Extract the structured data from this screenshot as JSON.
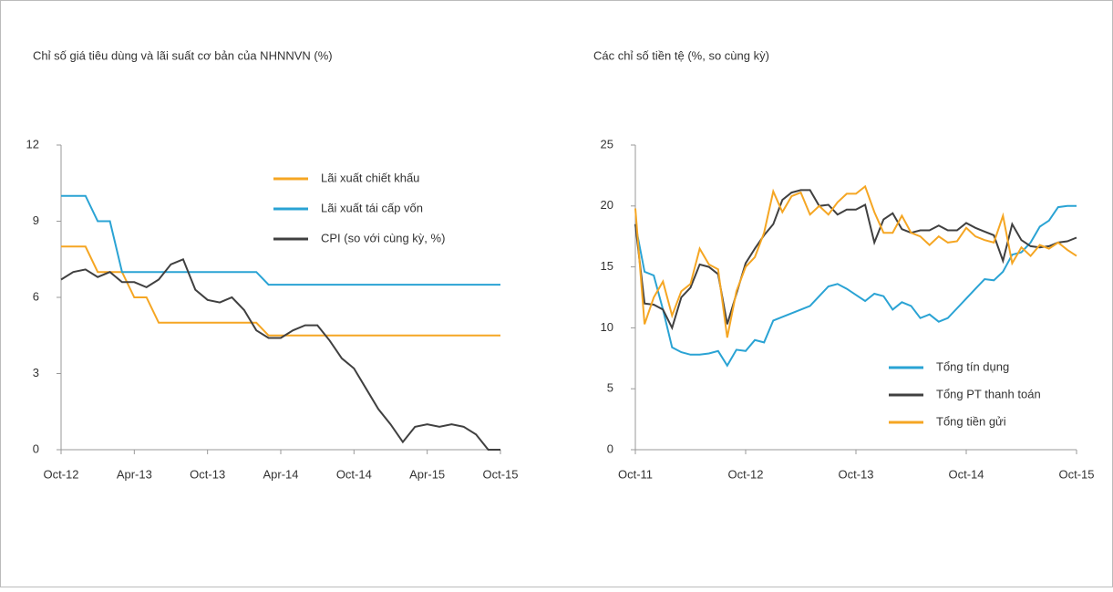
{
  "chart_data": [
    {
      "type": "line",
      "title": "Chỉ số giá tiêu dùng và lãi suất cơ bản của NHNNVN (%)",
      "categories": [
        "Oct-12",
        null,
        null,
        null,
        null,
        null,
        "Apr-13",
        null,
        null,
        null,
        null,
        null,
        "Oct-13",
        null,
        null,
        null,
        null,
        null,
        "Apr-14",
        null,
        null,
        null,
        null,
        null,
        "Oct-14",
        null,
        null,
        null,
        null,
        null,
        "Apr-15",
        null,
        null,
        null,
        null,
        null,
        "Oct-15"
      ],
      "series": [
        {
          "name": "Lãi xuất chiết khấu",
          "color": "#f5a623",
          "values": [
            8,
            8,
            8,
            7,
            7,
            7,
            6,
            6,
            5,
            5,
            5,
            5,
            5,
            5,
            5,
            5,
            5,
            4.5,
            4.5,
            4.5,
            4.5,
            4.5,
            4.5,
            4.5,
            4.5,
            4.5,
            4.5,
            4.5,
            4.5,
            4.5,
            4.5,
            4.5,
            4.5,
            4.5,
            4.5,
            4.5,
            4.5
          ]
        },
        {
          "name": "Lãi xuất tái cấp vốn",
          "color": "#2aa3d4",
          "values": [
            10,
            10,
            10,
            9,
            9,
            7,
            7,
            7,
            7,
            7,
            7,
            7,
            7,
            7,
            7,
            7,
            7,
            6.5,
            6.5,
            6.5,
            6.5,
            6.5,
            6.5,
            6.5,
            6.5,
            6.5,
            6.5,
            6.5,
            6.5,
            6.5,
            6.5,
            6.5,
            6.5,
            6.5,
            6.5,
            6.5,
            6.5
          ]
        },
        {
          "name": "CPI (so với cùng kỳ, %)",
          "color": "#404040",
          "values": [
            6.7,
            7.0,
            7.1,
            6.8,
            7.0,
            6.6,
            6.6,
            6.4,
            6.7,
            7.3,
            7.5,
            6.3,
            5.9,
            5.8,
            6.0,
            5.5,
            4.7,
            4.4,
            4.4,
            4.7,
            4.9,
            4.9,
            4.3,
            3.6,
            3.2,
            2.4,
            1.6,
            1.0,
            0.3,
            0.9,
            1.0,
            0.9,
            1.0,
            0.9,
            0.6,
            0.0,
            0.0
          ]
        }
      ],
      "ylim": [
        0,
        12
      ],
      "yticks": [
        0,
        3,
        6,
        9,
        12
      ],
      "legend": "upper right"
    },
    {
      "type": "line",
      "title": "Các chỉ số tiền tệ (%, so cùng kỳ)",
      "categories": [
        "Oct-11",
        null,
        null,
        null,
        null,
        null,
        null,
        null,
        null,
        null,
        null,
        null,
        "Oct-12",
        null,
        null,
        null,
        null,
        null,
        null,
        null,
        null,
        null,
        null,
        null,
        "Oct-13",
        null,
        null,
        null,
        null,
        null,
        null,
        null,
        null,
        null,
        null,
        null,
        "Oct-14",
        null,
        null,
        null,
        null,
        null,
        null,
        null,
        null,
        null,
        null,
        null,
        "Oct-15"
      ],
      "series": [
        {
          "name": "Tổng tín dụng",
          "color": "#2aa3d4",
          "values": [
            18.5,
            14.6,
            14.3,
            11.5,
            8.4,
            8.0,
            7.8,
            7.8,
            7.9,
            8.1,
            6.9,
            8.2,
            8.1,
            9.0,
            8.8,
            10.6,
            10.9,
            11.2,
            11.5,
            11.8,
            12.6,
            13.4,
            13.6,
            13.2,
            12.7,
            12.2,
            12.8,
            12.6,
            11.5,
            12.1,
            11.8,
            10.8,
            11.1,
            10.5,
            10.8,
            11.6,
            12.4,
            13.2,
            14.0,
            13.9,
            14.6,
            16.0,
            16.2,
            17.0,
            18.3,
            18.8,
            19.9,
            20.0,
            20.0
          ]
        },
        {
          "name": "Tổng PT thanh toán",
          "color": "#404040",
          "values": [
            18.5,
            12.0,
            11.9,
            11.5,
            10.0,
            12.5,
            13.3,
            15.2,
            15.0,
            14.4,
            10.3,
            12.8,
            15.3,
            16.5,
            17.6,
            18.5,
            20.5,
            21.1,
            21.3,
            21.3,
            20.0,
            20.1,
            19.3,
            19.7,
            19.7,
            20.1,
            17.0,
            18.9,
            19.4,
            18.1,
            17.8,
            18.0,
            18.0,
            18.4,
            18.0,
            18.0,
            18.6,
            18.2,
            17.9,
            17.6,
            15.5,
            18.5,
            17.2,
            16.7,
            16.6,
            16.7,
            17.0,
            17.1,
            17.4
          ]
        },
        {
          "name": "Tổng tiền gửi",
          "color": "#f5a623",
          "values": [
            19.8,
            10.3,
            12.5,
            13.8,
            11.0,
            13.0,
            13.6,
            16.5,
            15.2,
            14.8,
            9.2,
            13.0,
            15.0,
            15.8,
            17.8,
            21.2,
            19.5,
            20.8,
            21.1,
            19.3,
            20.0,
            19.3,
            20.3,
            21.0,
            21.0,
            21.6,
            19.5,
            17.8,
            17.8,
            19.2,
            17.8,
            17.5,
            16.8,
            17.5,
            17.0,
            17.1,
            18.2,
            17.5,
            17.2,
            17.0,
            19.2,
            15.3,
            16.6,
            15.9,
            16.8,
            16.5,
            17.0,
            16.4,
            15.9
          ]
        }
      ],
      "ylim": [
        0,
        25
      ],
      "yticks": [
        0,
        5,
        10,
        15,
        20,
        25
      ],
      "legend": "lower right"
    }
  ]
}
